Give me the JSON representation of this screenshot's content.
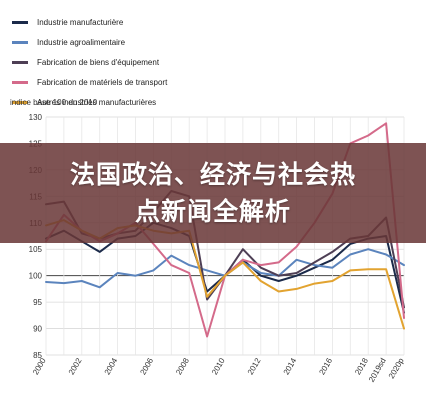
{
  "chart_data": {
    "type": "line",
    "title": "",
    "ylabel": "indice base 100 en 2010",
    "xlabel": "",
    "ylim": [
      85,
      130
    ],
    "yticks": [
      85,
      90,
      95,
      100,
      105,
      110,
      115,
      120,
      125,
      130
    ],
    "x": [
      "2000",
      "2001",
      "2002",
      "2003",
      "2004",
      "2005",
      "2006",
      "2007",
      "2008",
      "2009",
      "2010",
      "2011",
      "2012",
      "2013",
      "2014",
      "2015",
      "2016",
      "2017",
      "2018",
      "2019sd",
      "2020p"
    ],
    "xtick_labels": [
      "2000",
      "2002",
      "2004",
      "2006",
      "2008",
      "2010",
      "2012",
      "2014",
      "2016",
      "2018",
      "2019sd",
      "2020p"
    ],
    "grid": true,
    "legend_position": "top-left",
    "series": [
      {
        "name": "Industrie manufacturière",
        "color": "#1b2a4a",
        "values": [
          107,
          108.5,
          106.5,
          104.5,
          107,
          107.5,
          110,
          109,
          107.5,
          97,
          100,
          103,
          100,
          99,
          100,
          101.5,
          103,
          106,
          107,
          107.5,
          93
        ]
      },
      {
        "name": "Industrie agroalimentaire",
        "color": "#5b84bd",
        "values": [
          98.8,
          98.6,
          99,
          97.8,
          100.5,
          100,
          101,
          103.8,
          102,
          101,
          100,
          102.5,
          100.5,
          100,
          103,
          102,
          101.5,
          104,
          105,
          104,
          102
        ]
      },
      {
        "name": "Fabrication de biens d'équipement",
        "color": "#4e3f55",
        "values": [
          113.5,
          114,
          108,
          107,
          108,
          108.5,
          112,
          116,
          115,
          95.5,
          100,
          105,
          101.5,
          100,
          100.5,
          102.5,
          104.5,
          107,
          107.5,
          111,
          94
        ]
      },
      {
        "name": "Fabrication de matériels de transport",
        "color": "#d46a8a",
        "values": [
          106.5,
          111.5,
          108.5,
          106.5,
          108,
          110,
          106,
          102,
          100.5,
          88.5,
          100,
          103,
          102,
          102.5,
          105.5,
          110,
          115.5,
          125,
          126.5,
          128.8,
          92
        ]
      },
      {
        "name": "Autres industries manufacturières",
        "color": "#e2a330",
        "values": [
          109.5,
          110.5,
          108.5,
          107,
          109,
          109.5,
          108.5,
          108,
          108.5,
          96,
          100,
          102.5,
          99,
          97,
          97.5,
          98.5,
          99,
          101,
          101.2,
          101.2,
          90
        ]
      }
    ]
  },
  "banner": {
    "line1": "法国政治、经济与社会热",
    "line2": "点新闻全解析"
  }
}
